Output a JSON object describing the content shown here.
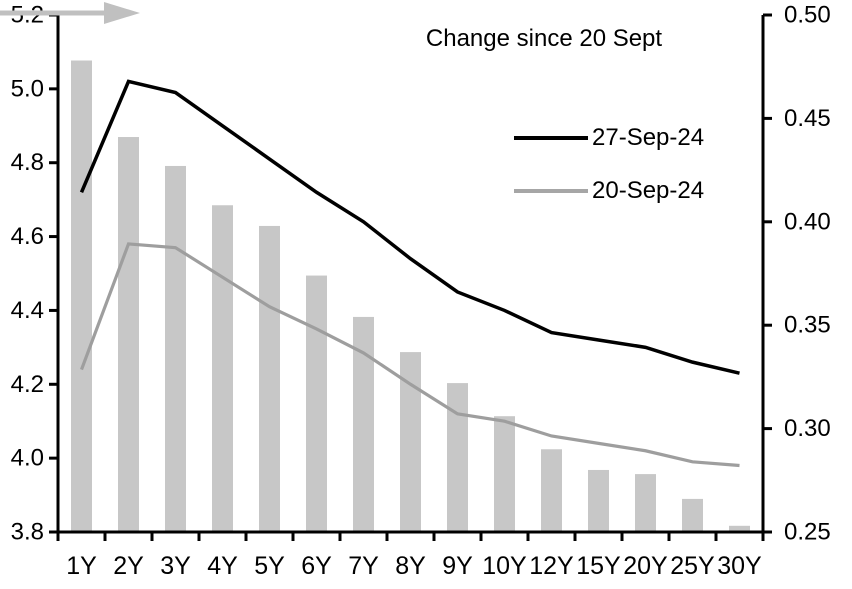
{
  "chart_data": {
    "type": "combo-bar-line",
    "categories": [
      "1Y",
      "2Y",
      "3Y",
      "4Y",
      "5Y",
      "6Y",
      "7Y",
      "8Y",
      "9Y",
      "10Y",
      "12Y",
      "15Y",
      "20Y",
      "25Y",
      "30Y"
    ],
    "series": [
      {
        "name": "27-Sep-24",
        "type": "line",
        "axis": "left",
        "color": "#000000",
        "stroke_width": 3.5,
        "values": [
          4.72,
          5.02,
          4.99,
          4.9,
          4.81,
          4.72,
          4.64,
          4.54,
          4.45,
          4.4,
          4.34,
          4.32,
          4.3,
          4.26,
          4.23
        ]
      },
      {
        "name": "20-Sep-24",
        "type": "line",
        "axis": "left",
        "color": "#9e9e9e",
        "stroke_width": 3.2,
        "values": [
          4.24,
          4.58,
          4.57,
          4.49,
          4.41,
          4.35,
          4.285,
          4.2,
          4.12,
          4.1,
          4.06,
          4.04,
          4.02,
          3.99,
          3.98
        ]
      },
      {
        "name": "Change since 20 Sept",
        "type": "bar",
        "axis": "right",
        "color": "#c7c7c7",
        "values": [
          0.478,
          0.441,
          0.427,
          0.408,
          0.398,
          0.374,
          0.354,
          0.337,
          0.322,
          0.306,
          0.29,
          0.28,
          0.278,
          0.266,
          0.253
        ]
      }
    ],
    "left_axis": {
      "min": 3.8,
      "max": 5.2,
      "ticks": [
        5.2,
        5.0,
        4.8,
        4.6,
        4.4,
        4.2,
        4.0,
        3.8
      ],
      "tick_labels": [
        "5.2",
        "5.0",
        "4.8",
        "4.6",
        "4.4",
        "4.2",
        "4.0",
        "3.8"
      ]
    },
    "right_axis": {
      "min": 0.25,
      "max": 0.5,
      "ticks": [
        0.5,
        0.45,
        0.4,
        0.35,
        0.3,
        0.25
      ],
      "tick_labels": [
        "0.50",
        "0.45",
        "0.40",
        "0.35",
        "0.30",
        "0.25"
      ]
    },
    "grid": false,
    "legend_position": "inside-top-right",
    "arrow_color": "#c0c0c0",
    "axis_color": "#000000",
    "text_color": "#000000"
  }
}
